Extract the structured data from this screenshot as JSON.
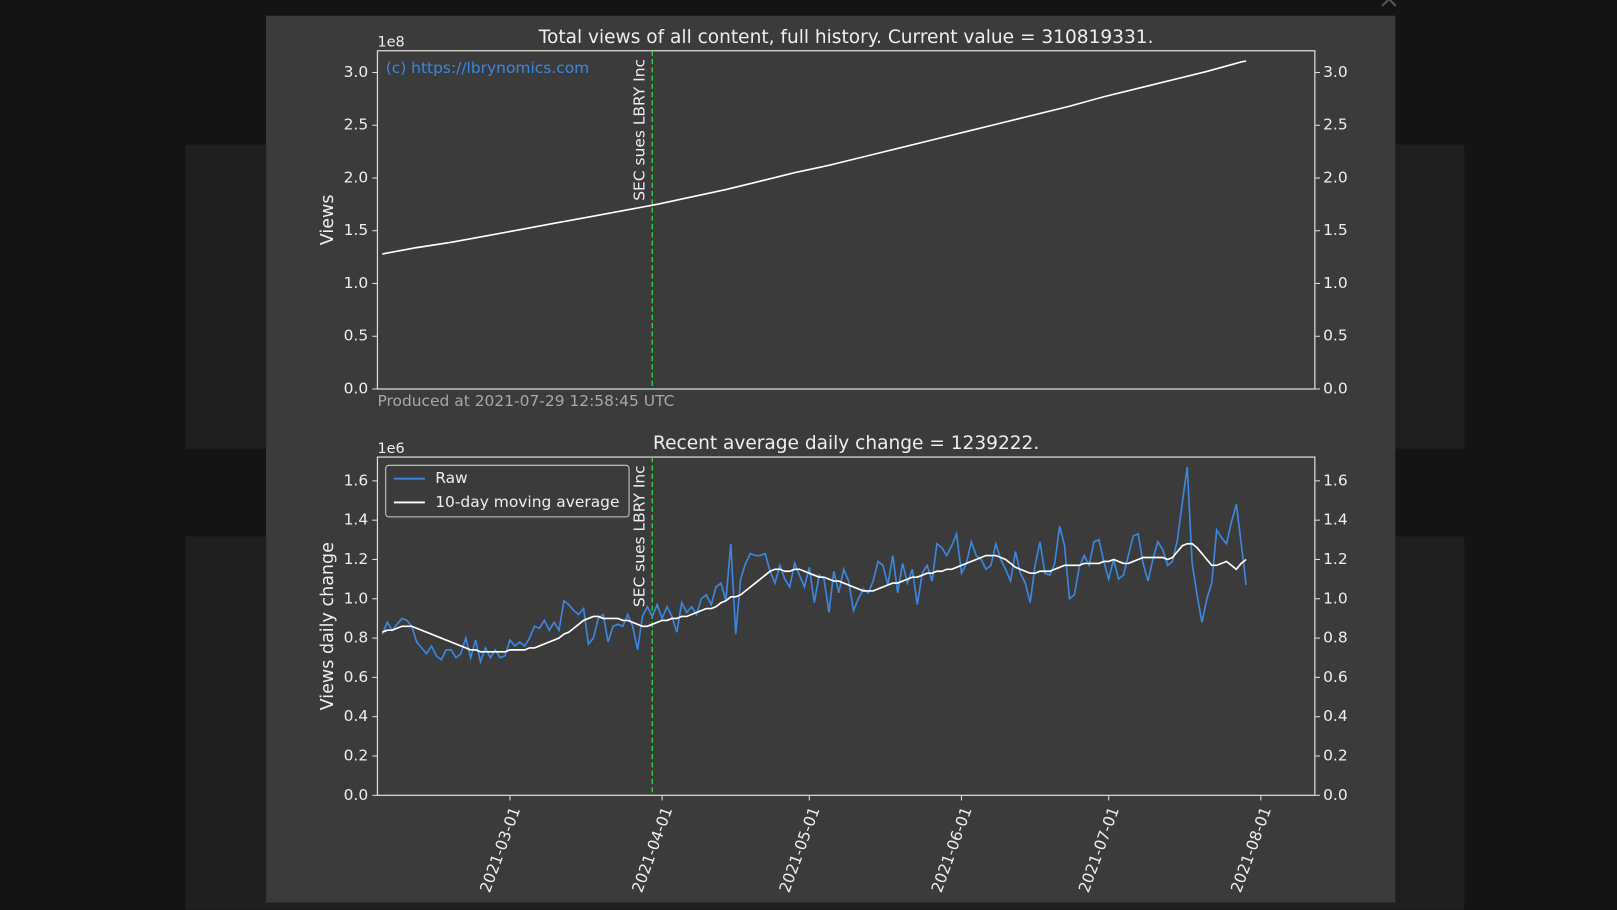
{
  "chart_data": [
    {
      "type": "line",
      "title": "Total views of all content, full history. Current value = 310819331.",
      "ylabel": "Views",
      "offset_label": "1e8",
      "watermark": "(c) https://lbrynomics.com",
      "footnote": "Produced at 2021-07-29 12:58:45 UTC",
      "x": [
        "2021-02-03",
        "2021-02-10",
        "2021-02-17",
        "2021-02-24",
        "2021-03-03",
        "2021-03-10",
        "2021-03-17",
        "2021-03-24",
        "2021-03-31",
        "2021-04-07",
        "2021-04-14",
        "2021-04-21",
        "2021-04-28",
        "2021-05-05",
        "2021-05-12",
        "2021-05-19",
        "2021-05-26",
        "2021-06-02",
        "2021-06-09",
        "2021-06-16",
        "2021-06-23",
        "2021-06-30",
        "2021-07-07",
        "2021-07-14",
        "2021-07-21",
        "2021-07-28",
        "2021-07-29"
      ],
      "values": [
        1.28,
        1.34,
        1.39,
        1.45,
        1.51,
        1.57,
        1.63,
        1.69,
        1.75,
        1.82,
        1.89,
        1.97,
        2.05,
        2.12,
        2.2,
        2.28,
        2.36,
        2.44,
        2.52,
        2.6,
        2.68,
        2.77,
        2.85,
        2.93,
        3.01,
        3.1,
        3.108
      ],
      "color": "#ffffff",
      "xlim": [
        "2021-02-02",
        "2021-08-12"
      ],
      "ylim": [
        0,
        3.206
      ],
      "yticks": [
        {
          "value": 0,
          "label": "0.0"
        },
        {
          "value": 0.5,
          "label": "0.5"
        },
        {
          "value": 1,
          "label": "1.0"
        },
        {
          "value": 1.5,
          "label": "1.5"
        },
        {
          "value": 2,
          "label": "2.0"
        },
        {
          "value": 2.5,
          "label": "2.5"
        },
        {
          "value": 3,
          "label": "3.0"
        }
      ],
      "right_axis": true,
      "vline": {
        "x": "2021-03-30",
        "label": "SEC sues LBRY Inc",
        "color": "#2ecc40"
      }
    },
    {
      "type": "line",
      "title": "Recent average daily change = 1239222.",
      "ylabel": "Views daily change",
      "offset_label": "1e6",
      "x": [
        "2021-02-03",
        "2021-02-04",
        "2021-02-05",
        "2021-02-06",
        "2021-02-07",
        "2021-02-08",
        "2021-02-09",
        "2021-02-10",
        "2021-02-11",
        "2021-02-12",
        "2021-02-13",
        "2021-02-14",
        "2021-02-15",
        "2021-02-16",
        "2021-02-17",
        "2021-02-18",
        "2021-02-19",
        "2021-02-20",
        "2021-02-21",
        "2021-02-22",
        "2021-02-23",
        "2021-02-24",
        "2021-02-25",
        "2021-02-26",
        "2021-02-27",
        "2021-02-28",
        "2021-03-01",
        "2021-03-02",
        "2021-03-03",
        "2021-03-04",
        "2021-03-05",
        "2021-03-06",
        "2021-03-07",
        "2021-03-08",
        "2021-03-09",
        "2021-03-10",
        "2021-03-11",
        "2021-03-12",
        "2021-03-13",
        "2021-03-14",
        "2021-03-15",
        "2021-03-16",
        "2021-03-17",
        "2021-03-18",
        "2021-03-19",
        "2021-03-20",
        "2021-03-21",
        "2021-03-22",
        "2021-03-23",
        "2021-03-24",
        "2021-03-25",
        "2021-03-26",
        "2021-03-27",
        "2021-03-28",
        "2021-03-29",
        "2021-03-30",
        "2021-03-31",
        "2021-04-01",
        "2021-04-02",
        "2021-04-03",
        "2021-04-04",
        "2021-04-05",
        "2021-04-06",
        "2021-04-07",
        "2021-04-08",
        "2021-04-09",
        "2021-04-10",
        "2021-04-11",
        "2021-04-12",
        "2021-04-13",
        "2021-04-14",
        "2021-04-15",
        "2021-04-16",
        "2021-04-17",
        "2021-04-18",
        "2021-04-19",
        "2021-04-20",
        "2021-04-21",
        "2021-04-22",
        "2021-04-23",
        "2021-04-24",
        "2021-04-25",
        "2021-04-26",
        "2021-04-27",
        "2021-04-28",
        "2021-04-29",
        "2021-04-30",
        "2021-05-01",
        "2021-05-02",
        "2021-05-03",
        "2021-05-04",
        "2021-05-05",
        "2021-05-06",
        "2021-05-07",
        "2021-05-08",
        "2021-05-09",
        "2021-05-10",
        "2021-05-11",
        "2021-05-12",
        "2021-05-13",
        "2021-05-14",
        "2021-05-15",
        "2021-05-16",
        "2021-05-17",
        "2021-05-18",
        "2021-05-19",
        "2021-05-20",
        "2021-05-21",
        "2021-05-22",
        "2021-05-23",
        "2021-05-24",
        "2021-05-25",
        "2021-05-26",
        "2021-05-27",
        "2021-05-28",
        "2021-05-29",
        "2021-05-30",
        "2021-05-31",
        "2021-06-01",
        "2021-06-02",
        "2021-06-03",
        "2021-06-04",
        "2021-06-05",
        "2021-06-06",
        "2021-06-07",
        "2021-06-08",
        "2021-06-09",
        "2021-06-10",
        "2021-06-11",
        "2021-06-12",
        "2021-06-13",
        "2021-06-14",
        "2021-06-15",
        "2021-06-16",
        "2021-06-17",
        "2021-06-18",
        "2021-06-19",
        "2021-06-20",
        "2021-06-21",
        "2021-06-22",
        "2021-06-23",
        "2021-06-24",
        "2021-06-25",
        "2021-06-26",
        "2021-06-27",
        "2021-06-28",
        "2021-06-29",
        "2021-06-30",
        "2021-07-01",
        "2021-07-02",
        "2021-07-03",
        "2021-07-04",
        "2021-07-05",
        "2021-07-06",
        "2021-07-07",
        "2021-07-08",
        "2021-07-09",
        "2021-07-10",
        "2021-07-11",
        "2021-07-12",
        "2021-07-13",
        "2021-07-14",
        "2021-07-15",
        "2021-07-16",
        "2021-07-17",
        "2021-07-18",
        "2021-07-19",
        "2021-07-20",
        "2021-07-21",
        "2021-07-22",
        "2021-07-23",
        "2021-07-24",
        "2021-07-25",
        "2021-07-26",
        "2021-07-27",
        "2021-07-28",
        "2021-07-29"
      ],
      "series": [
        {
          "name": "Raw",
          "color": "#3b87e0",
          "values": [
            0.82,
            0.88,
            0.84,
            0.87,
            0.9,
            0.89,
            0.86,
            0.78,
            0.75,
            0.72,
            0.76,
            0.71,
            0.69,
            0.74,
            0.74,
            0.7,
            0.72,
            0.8,
            0.7,
            0.79,
            0.68,
            0.75,
            0.7,
            0.74,
            0.7,
            0.71,
            0.79,
            0.76,
            0.78,
            0.76,
            0.8,
            0.86,
            0.85,
            0.89,
            0.84,
            0.88,
            0.84,
            0.99,
            0.97,
            0.94,
            0.92,
            0.95,
            0.77,
            0.8,
            0.9,
            0.92,
            0.78,
            0.86,
            0.87,
            0.86,
            0.92,
            0.86,
            0.74,
            0.91,
            0.96,
            0.91,
            0.97,
            0.9,
            0.96,
            0.91,
            0.83,
            0.98,
            0.93,
            0.96,
            0.92,
            1.0,
            1.02,
            0.97,
            1.06,
            1.08,
            0.99,
            1.28,
            0.82,
            1.1,
            1.18,
            1.23,
            1.22,
            1.22,
            1.23,
            1.14,
            1.08,
            1.17,
            1.1,
            1.06,
            1.18,
            1.12,
            1.06,
            1.16,
            0.98,
            1.12,
            1.1,
            0.93,
            1.14,
            1.03,
            1.15,
            1.09,
            0.94,
            1.0,
            1.05,
            1.03,
            1.09,
            1.19,
            1.17,
            1.07,
            1.22,
            1.03,
            1.18,
            1.08,
            1.15,
            0.97,
            1.13,
            1.17,
            1.09,
            1.28,
            1.26,
            1.22,
            1.27,
            1.33,
            1.13,
            1.18,
            1.29,
            1.22,
            1.2,
            1.15,
            1.17,
            1.28,
            1.2,
            1.15,
            1.09,
            1.24,
            1.13,
            1.08,
            0.98,
            1.17,
            1.29,
            1.13,
            1.12,
            1.18,
            1.37,
            1.27,
            1.0,
            1.02,
            1.16,
            1.22,
            1.17,
            1.29,
            1.3,
            1.19,
            1.1,
            1.2,
            1.1,
            1.12,
            1.22,
            1.32,
            1.33,
            1.18,
            1.09,
            1.2,
            1.29,
            1.25,
            1.17,
            1.19,
            1.3,
            1.49,
            1.67,
            1.18,
            1.02,
            0.88,
            1.0,
            1.08,
            1.35,
            1.31,
            1.28,
            1.39,
            1.48,
            1.28,
            1.07
          ]
        },
        {
          "name": "10-day moving average",
          "color": "#ffffff",
          "values": [
            0.83,
            0.84,
            0.84,
            0.85,
            0.86,
            0.86,
            0.86,
            0.85,
            0.84,
            0.83,
            0.82,
            0.81,
            0.8,
            0.79,
            0.78,
            0.77,
            0.76,
            0.75,
            0.74,
            0.74,
            0.73,
            0.73,
            0.73,
            0.73,
            0.73,
            0.73,
            0.74,
            0.74,
            0.74,
            0.74,
            0.75,
            0.75,
            0.76,
            0.77,
            0.78,
            0.79,
            0.8,
            0.82,
            0.83,
            0.85,
            0.87,
            0.89,
            0.9,
            0.91,
            0.91,
            0.9,
            0.9,
            0.9,
            0.9,
            0.89,
            0.89,
            0.88,
            0.87,
            0.86,
            0.86,
            0.87,
            0.88,
            0.89,
            0.89,
            0.9,
            0.9,
            0.91,
            0.91,
            0.92,
            0.93,
            0.94,
            0.95,
            0.95,
            0.96,
            0.98,
            0.99,
            1.01,
            1.01,
            1.02,
            1.04,
            1.06,
            1.08,
            1.1,
            1.12,
            1.14,
            1.15,
            1.15,
            1.14,
            1.14,
            1.15,
            1.15,
            1.14,
            1.13,
            1.12,
            1.11,
            1.11,
            1.1,
            1.09,
            1.09,
            1.08,
            1.07,
            1.06,
            1.05,
            1.04,
            1.04,
            1.04,
            1.05,
            1.06,
            1.07,
            1.08,
            1.08,
            1.09,
            1.1,
            1.11,
            1.11,
            1.12,
            1.13,
            1.13,
            1.14,
            1.14,
            1.15,
            1.15,
            1.16,
            1.17,
            1.18,
            1.19,
            1.2,
            1.21,
            1.22,
            1.22,
            1.22,
            1.21,
            1.2,
            1.18,
            1.16,
            1.15,
            1.14,
            1.13,
            1.13,
            1.14,
            1.14,
            1.14,
            1.15,
            1.16,
            1.17,
            1.17,
            1.17,
            1.17,
            1.18,
            1.18,
            1.18,
            1.18,
            1.19,
            1.19,
            1.2,
            1.19,
            1.18,
            1.18,
            1.19,
            1.2,
            1.21,
            1.21,
            1.21,
            1.21,
            1.21,
            1.2,
            1.21,
            1.24,
            1.27,
            1.28,
            1.28,
            1.26,
            1.23,
            1.2,
            1.17,
            1.17,
            1.18,
            1.19,
            1.17,
            1.15,
            1.18,
            1.2
          ]
        }
      ],
      "legend": "upper left",
      "xlim": [
        "2021-02-02",
        "2021-08-12"
      ],
      "xticks": [
        "2021-03-01",
        "2021-04-01",
        "2021-05-01",
        "2021-06-01",
        "2021-07-01",
        "2021-08-01"
      ],
      "ylim": [
        0,
        1.721
      ],
      "yticks": [
        {
          "value": 0,
          "label": "0.0"
        },
        {
          "value": 0.2,
          "label": "0.2"
        },
        {
          "value": 0.4,
          "label": "0.4"
        },
        {
          "value": 0.6,
          "label": "0.6"
        },
        {
          "value": 0.8,
          "label": "0.8"
        },
        {
          "value": 1,
          "label": "1.0"
        },
        {
          "value": 1.2,
          "label": "1.2"
        },
        {
          "value": 1.4,
          "label": "1.4"
        },
        {
          "value": 1.6,
          "label": "1.6"
        }
      ],
      "right_axis": true,
      "vline": {
        "x": "2021-03-30",
        "label": "SEC sues LBRY Inc",
        "color": "#2ecc40"
      }
    }
  ]
}
